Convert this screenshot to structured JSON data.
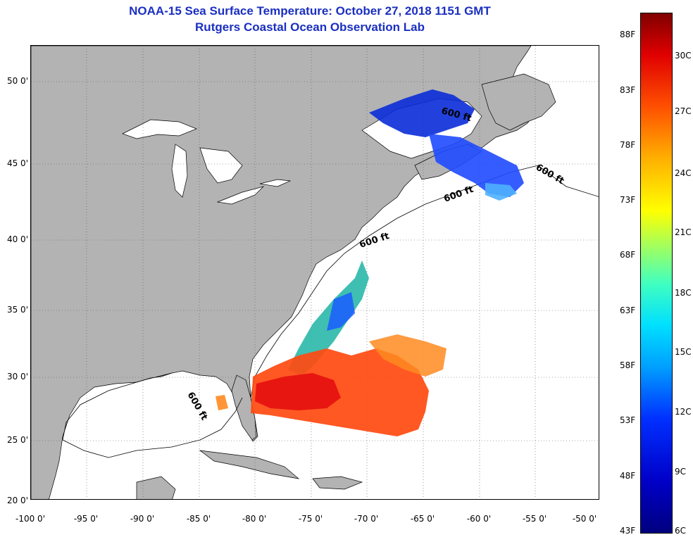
{
  "title": {
    "line1": "NOAA-15 Sea Surface Temperature:  October 27, 2018 1151 GMT",
    "line2": "Rutgers Coastal Ocean Observation Lab"
  },
  "map": {
    "lat_ticks": [
      "50 0'",
      "45 0'",
      "40 0'",
      "35 0'",
      "30 0'",
      "25 0'",
      "20 0'"
    ],
    "lon_ticks": [
      "-100 0'",
      "-95 0'",
      "-90 0'",
      "-85 0'",
      "-80 0'",
      "-75 0'",
      "-70 0'",
      "-65 0'",
      "-60 0'",
      "-55 0'",
      "-50 0'"
    ],
    "contour_label": "600 ft",
    "land_color": "#b3b3b3",
    "ocean_color": "#ffffff"
  },
  "colorbar": {
    "fahrenheit": [
      "88F",
      "83F",
      "78F",
      "73F",
      "68F",
      "63F",
      "58F",
      "53F",
      "48F",
      "43F"
    ],
    "celsius": [
      "30C",
      "27C",
      "24C",
      "21C",
      "18C",
      "15C",
      "12C",
      "9C",
      "6C"
    ]
  }
}
